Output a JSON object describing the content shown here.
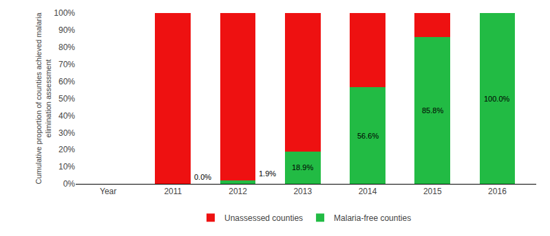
{
  "chart_data": {
    "type": "bar",
    "stacked": true,
    "categories": [
      "Year",
      "2011",
      "2012",
      "2013",
      "2014",
      "2015",
      "2016"
    ],
    "series": [
      {
        "name": "Malaria-free counties",
        "color": "#22BB44",
        "values": [
          null,
          0.0,
          1.9,
          18.9,
          56.6,
          85.8,
          100.0
        ],
        "data_labels": true,
        "value_labels": [
          null,
          "0.0%",
          "1.9%",
          "18.9%",
          "56.6%",
          "85.8%",
          "100.0%"
        ]
      },
      {
        "name": "Unassessed counties",
        "color": "#EE1111",
        "values": [
          null,
          100.0,
          98.1,
          81.1,
          43.4,
          14.2,
          0.0
        ]
      }
    ],
    "y_label": "Cumulative proportion of counties achieved malaria\nelimination assessment",
    "ylim": [
      0,
      100
    ],
    "yticks": [
      {
        "value": 0,
        "label": "0%"
      },
      {
        "value": 10,
        "label": "10%"
      },
      {
        "value": 20,
        "label": "20%"
      },
      {
        "value": 30,
        "label": "30%"
      },
      {
        "value": 40,
        "label": "40%"
      },
      {
        "value": 50,
        "label": "50%"
      },
      {
        "value": 60,
        "label": "60%"
      },
      {
        "value": 70,
        "label": "70%"
      },
      {
        "value": 80,
        "label": "80%"
      },
      {
        "value": 90,
        "label": "90%"
      },
      {
        "value": 100,
        "label": "100%"
      }
    ],
    "grid": false,
    "legend": "bottom"
  }
}
